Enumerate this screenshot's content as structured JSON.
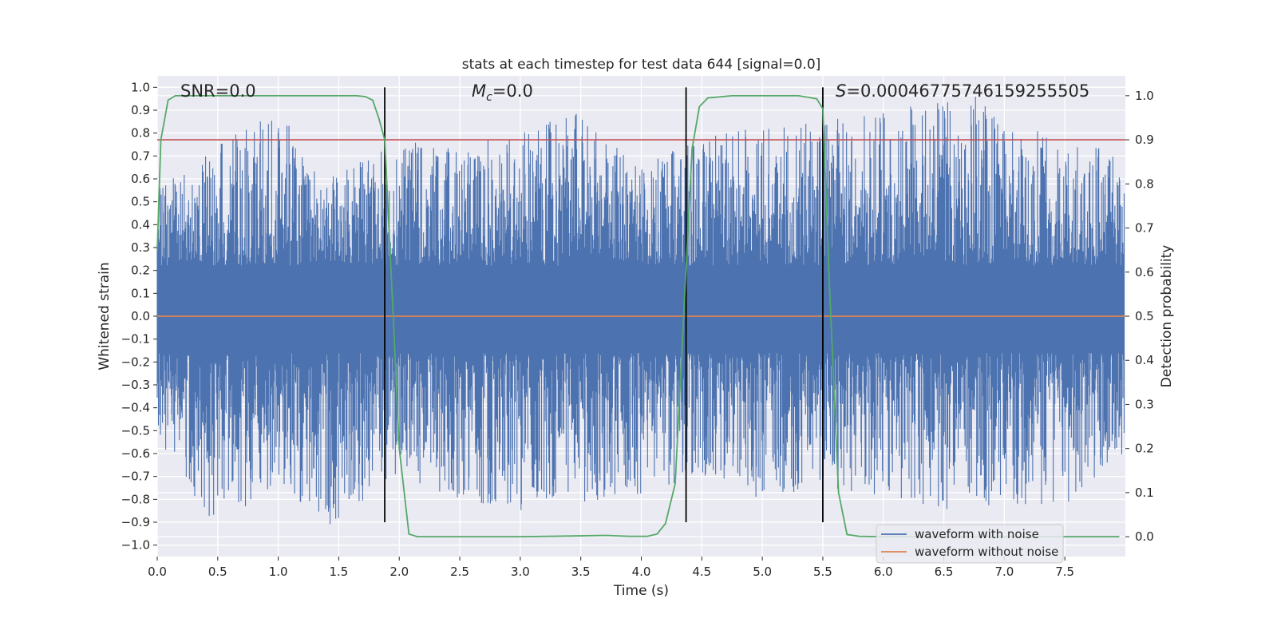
{
  "chart_data": {
    "type": "line",
    "title": "stats at each timestep for test data 644 [signal=0.0]",
    "xlabel": "Time (s)",
    "ylabel_left": "Whitened strain",
    "ylabel_right": "Detection probability",
    "xlim": [
      0.0,
      8.0
    ],
    "ylim_left": [
      -1.05,
      1.05
    ],
    "ylim_right": [
      -0.045,
      1.045
    ],
    "x_ticks": [
      "0.0",
      "0.5",
      "1.0",
      "1.5",
      "2.0",
      "2.5",
      "3.0",
      "3.5",
      "4.0",
      "4.5",
      "5.0",
      "5.5",
      "6.0",
      "6.5",
      "7.0",
      "7.5"
    ],
    "y_ticks_left": [
      "1.0",
      "0.9",
      "0.8",
      "0.7",
      "0.6",
      "0.5",
      "0.4",
      "0.3",
      "0.2",
      "0.1",
      "0.0",
      "-0.1",
      "-0.2",
      "-0.3",
      "-0.4",
      "-0.5",
      "-0.6",
      "-0.7",
      "-0.8",
      "-0.9",
      "-1.0"
    ],
    "y_ticks_right": [
      "1.0",
      "0.9",
      "0.8",
      "0.7",
      "0.6",
      "0.5",
      "0.4",
      "0.3",
      "0.2",
      "0.1",
      "0.0"
    ],
    "annotations": {
      "snr": "SNR=0.0",
      "mc_symbol": "M",
      "mc_subscript": "c",
      "mc_value": "=0.0",
      "s_symbol": "S",
      "s_value": "=0.00046775746159255505"
    },
    "grid": true,
    "legend": {
      "placement": "lower-right",
      "entries": [
        "waveform with noise",
        "waveform without noise"
      ]
    },
    "colors": {
      "background": "#eaeaf2",
      "grid": "#ffffff",
      "noise_waveform": "#4c72b0",
      "clean_waveform": "#dd8452",
      "detection_probability": "#55a868",
      "threshold": "#c44e52",
      "segment_markers": "#000000"
    },
    "series": [
      {
        "name": "waveform with noise",
        "axis": "left",
        "style": "noise",
        "envelope": [
          {
            "x": 0.0,
            "max": 0.55,
            "min": -0.6
          },
          {
            "x": 0.5,
            "max": 0.75,
            "min": -0.93
          },
          {
            "x": 1.0,
            "max": 0.9,
            "min": -0.72
          },
          {
            "x": 1.4,
            "max": 0.6,
            "min": -0.93
          },
          {
            "x": 2.0,
            "max": 0.77,
            "min": -0.7
          },
          {
            "x": 2.5,
            "max": 0.75,
            "min": -0.8
          },
          {
            "x": 3.0,
            "max": 0.8,
            "min": -0.85
          },
          {
            "x": 3.5,
            "max": 0.9,
            "min": -0.82
          },
          {
            "x": 4.0,
            "max": 0.65,
            "min": -0.78
          },
          {
            "x": 4.5,
            "max": 0.8,
            "min": -0.7
          },
          {
            "x": 5.0,
            "max": 0.83,
            "min": -0.8
          },
          {
            "x": 5.5,
            "max": 0.85,
            "min": -0.75
          },
          {
            "x": 6.0,
            "max": 0.9,
            "min": -0.8
          },
          {
            "x": 6.5,
            "max": 0.95,
            "min": -0.85
          },
          {
            "x": 6.75,
            "max": 1.0,
            "min": -0.8
          },
          {
            "x": 7.0,
            "max": 0.83,
            "min": -0.88
          },
          {
            "x": 7.5,
            "max": 0.8,
            "min": -0.85
          },
          {
            "x": 8.0,
            "max": 0.7,
            "min": -0.6
          }
        ]
      },
      {
        "name": "waveform without noise",
        "axis": "left",
        "x": [
          0.0,
          8.0
        ],
        "y": [
          0.0,
          0.0
        ]
      },
      {
        "name": "",
        "axis": "right",
        "x": [
          0.0,
          0.03,
          0.09,
          0.15,
          0.25,
          0.5,
          1.0,
          1.5,
          1.65,
          1.72,
          1.78,
          1.83,
          1.88,
          1.95,
          2.0,
          2.08,
          2.15,
          2.5,
          3.0,
          3.5,
          3.7,
          3.9,
          4.05,
          4.13,
          4.2,
          4.28,
          4.35,
          4.42,
          4.48,
          4.55,
          4.75,
          5.0,
          5.3,
          5.45,
          5.5,
          5.55,
          5.63,
          5.7,
          5.8,
          6.0,
          6.5,
          7.0,
          7.5,
          7.95
        ],
        "y": [
          0.65,
          0.9,
          0.99,
          1.0,
          1.0,
          1.0,
          1.0,
          1.0,
          1.0,
          0.998,
          0.99,
          0.95,
          0.9,
          0.5,
          0.2,
          0.006,
          0.0,
          0.0,
          0.0,
          0.002,
          0.003,
          0.001,
          0.001,
          0.006,
          0.03,
          0.12,
          0.5,
          0.88,
          0.975,
          0.995,
          1.0,
          1.0,
          1.0,
          0.993,
          0.97,
          0.6,
          0.1,
          0.005,
          0.001,
          0.0,
          0.0,
          0.0,
          0.0,
          0.0
        ]
      },
      {
        "name": "",
        "axis": "right",
        "x": [
          0.0,
          8.0
        ],
        "y": [
          0.9,
          0.9
        ]
      }
    ],
    "segment_markers": [
      {
        "x": 1.88,
        "y_from": -0.9,
        "y_to": 1.0
      },
      {
        "x": 4.37,
        "y_from": -0.9,
        "y_to": 1.0
      },
      {
        "x": 5.5,
        "y_from": -0.9,
        "y_to": 1.0
      }
    ]
  }
}
